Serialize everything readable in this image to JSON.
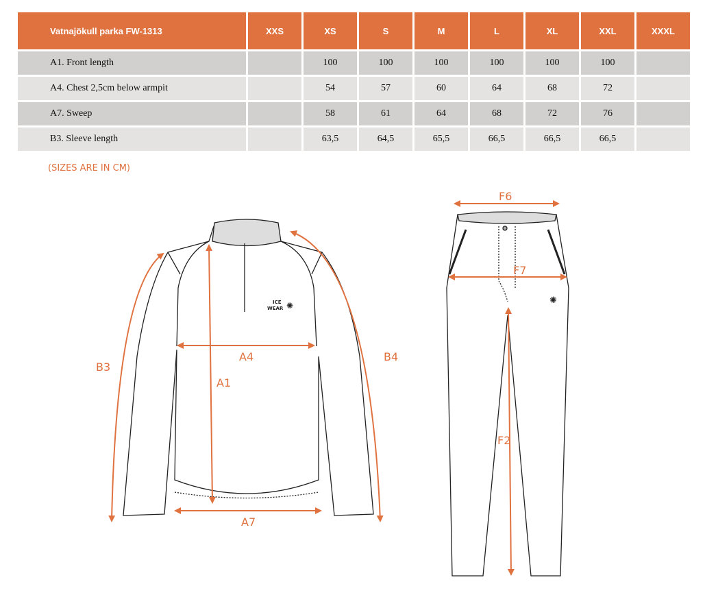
{
  "table": {
    "title": "Vatnajökull parka FW-1313",
    "sizes": [
      "XXS",
      "XS",
      "S",
      "M",
      "L",
      "XL",
      "XXL",
      "XXXL"
    ],
    "rows": [
      {
        "label": "A1. Front length",
        "values": [
          "",
          "100",
          "100",
          "100",
          "100",
          "100",
          "100",
          ""
        ]
      },
      {
        "label": "A4. Chest 2,5cm below armpit",
        "values": [
          "",
          "54",
          "57",
          "60",
          "64",
          "68",
          "72",
          ""
        ]
      },
      {
        "label": "A7. Sweep",
        "values": [
          "",
          "58",
          "61",
          "64",
          "68",
          "72",
          "76",
          ""
        ]
      },
      {
        "label": "B3. Sleeve length",
        "values": [
          "",
          "63,5",
          "64,5",
          "65,5",
          "66,5",
          "66,5",
          "66,5",
          ""
        ]
      }
    ]
  },
  "note": "(SIZES ARE IN CM)",
  "diagram": {
    "jacket_labels": {
      "b3": "B3",
      "b4": "B4",
      "a1": "A1",
      "a4": "A4",
      "a7": "A7"
    },
    "pants_labels": {
      "f6": "F6",
      "f7": "F7",
      "f2": "F2"
    },
    "logo": "ICE WEAR",
    "accent_color": "#e07240"
  }
}
